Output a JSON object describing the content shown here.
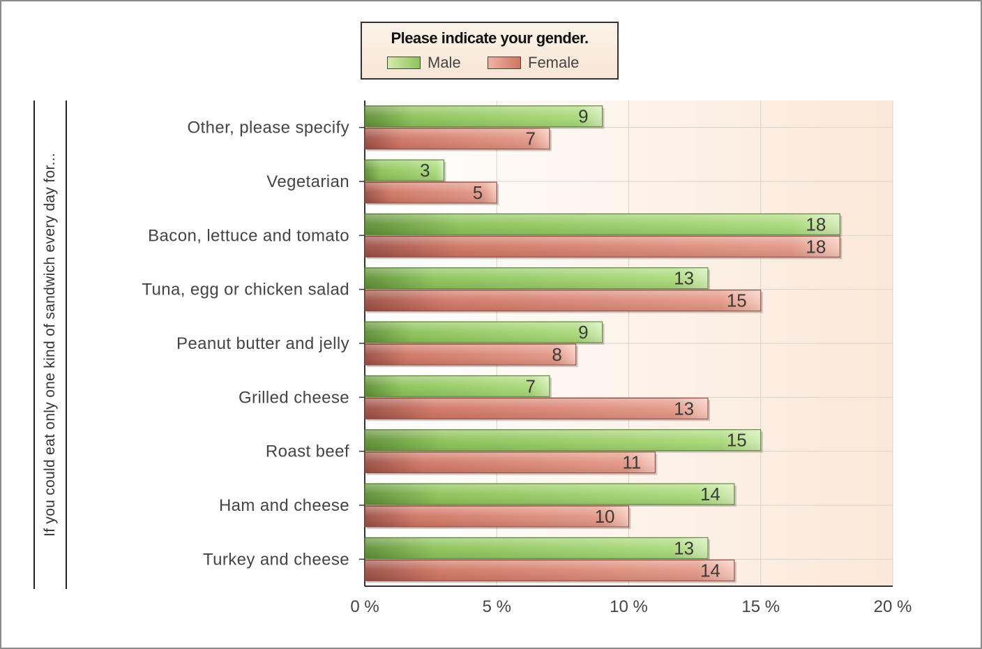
{
  "legend": {
    "title": "Please indicate your gender.",
    "items": [
      {
        "label": "Male",
        "color": "#8ec45a"
      },
      {
        "label": "Female",
        "color": "#d27461"
      }
    ]
  },
  "chart_data": {
    "type": "bar",
    "orientation": "horizontal",
    "ylabel": "If you could eat only one kind of sandwich every day for...",
    "xlabel": "",
    "xlim": [
      0,
      20
    ],
    "x_ticks": [
      "0 %",
      "5 %",
      "10 %",
      "15 %",
      "20 %"
    ],
    "x_tick_values": [
      0,
      5,
      10,
      15,
      20
    ],
    "grid": true,
    "legend_position": "top-center",
    "categories": [
      "Other, please specify",
      "Vegetarian",
      "Bacon, lettuce and tomato",
      "Tuna, egg or chicken salad",
      "Peanut butter and jelly",
      "Grilled cheese",
      "Roast beef",
      "Ham and cheese",
      "Turkey and cheese"
    ],
    "series": [
      {
        "name": "Male",
        "color": "#8ec45a",
        "values": [
          9,
          3,
          18,
          13,
          9,
          7,
          15,
          14,
          13
        ]
      },
      {
        "name": "Female",
        "color": "#d27461",
        "values": [
          7,
          5,
          18,
          15,
          8,
          13,
          11,
          10,
          14
        ]
      }
    ]
  }
}
